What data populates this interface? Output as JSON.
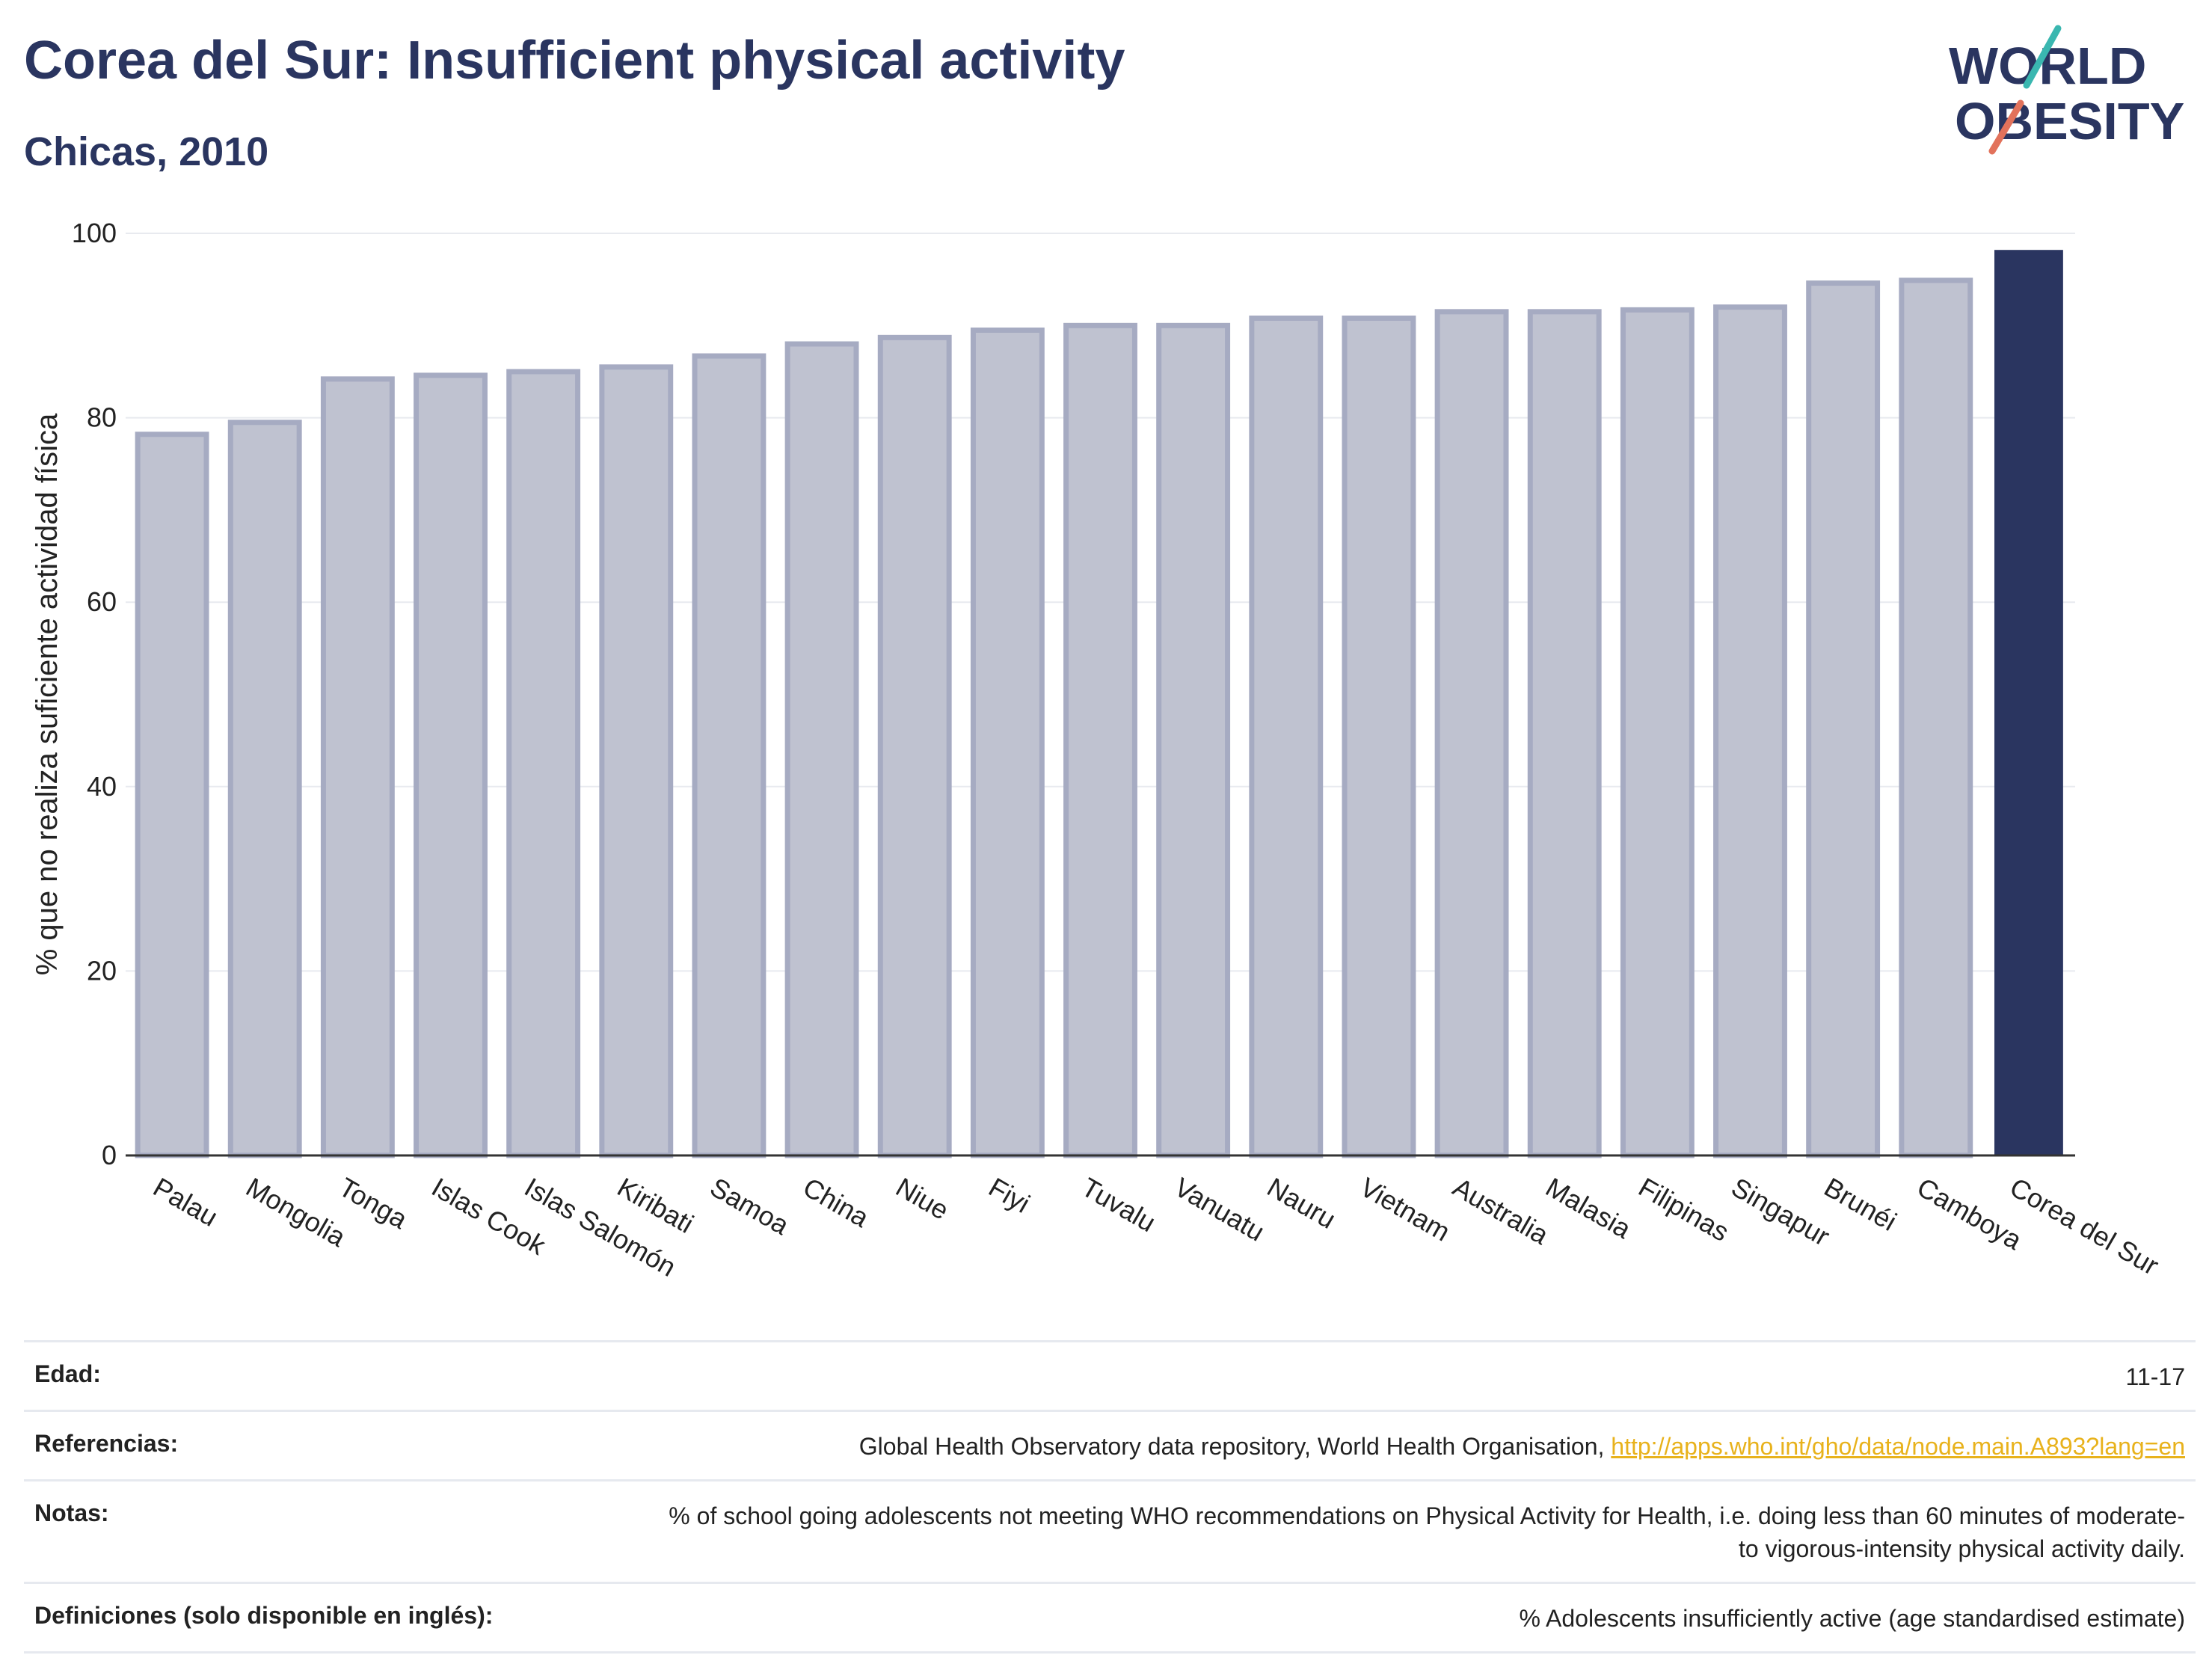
{
  "header": {
    "title": "Corea del Sur: Insufficient physical activity",
    "subtitle": "Chicas, 2010"
  },
  "logo": {
    "line1": "WORLD",
    "line2": "OBESITY"
  },
  "chart_data": {
    "type": "bar",
    "title": "Corea del Sur: Insufficient physical activity",
    "subtitle": "Chicas, 2010",
    "ylabel": "% que no realiza suficiente actividad física",
    "xlabel": "",
    "ylim": [
      0,
      100
    ],
    "yticks": [
      0,
      20,
      40,
      60,
      80,
      100
    ],
    "grid": true,
    "categories": [
      "Palau",
      "Mongolia",
      "Tonga",
      "Islas Cook",
      "Islas Salomón",
      "Kiribati",
      "Samoa",
      "China",
      "Niue",
      "Fiyi",
      "Tuvalu",
      "Vanuatu",
      "Nauru",
      "Vietnam",
      "Australia",
      "Malasia",
      "Filipinas",
      "Singapur",
      "Brunéi",
      "Camboya",
      "Corea del Sur"
    ],
    "values": [
      78.2,
      79.5,
      84.2,
      84.6,
      85.0,
      85.5,
      86.7,
      88.0,
      88.7,
      89.5,
      90.0,
      90.0,
      90.8,
      90.8,
      91.5,
      91.5,
      91.7,
      92.0,
      94.6,
      94.9,
      98.2
    ],
    "highlight": "Corea del Sur",
    "colors": {
      "bar": "#bfc2d0",
      "bar_edge": "#a6abc2",
      "highlight": "#2a3560"
    }
  },
  "footer": {
    "rows": [
      {
        "label": "Edad:",
        "value": "11-17"
      },
      {
        "label": "Referencias:",
        "value": "Global Health Observatory data repository, World Health Organisation, ",
        "link": "http://apps.who.int/gho/data/node.main.A893?lang=en"
      },
      {
        "label": "Notas:",
        "value": "% of school going adolescents not meeting WHO recommendations on Physical Activity for Health, i.e. doing less than 60 minutes of moderate- to vigorous-intensity physical activity daily."
      },
      {
        "label": "Definiciones (solo disponible en inglés):",
        "value": "% Adolescents insufficiently active (age standardised estimate)"
      }
    ]
  }
}
